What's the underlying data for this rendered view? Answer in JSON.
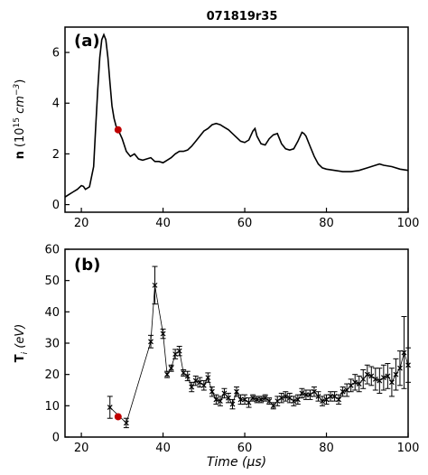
{
  "colors": {
    "line": "#000000",
    "marker": "#c00000"
  },
  "chart_data": [
    {
      "type": "line",
      "title": "071819r35",
      "panel_label": "(a)",
      "ylabel_main": "n",
      "ylabel_unit": "(10",
      "ylabel_exp": "15",
      "ylabel_tail": " cm",
      "ylabel_exp2": "−3",
      "ylabel_close": ")",
      "xlim": [
        16,
        100
      ],
      "ylim": [
        -0.3,
        7.0
      ],
      "xticks": [
        20,
        40,
        60,
        80,
        100
      ],
      "xtick_labels": [
        "20",
        "40",
        "60",
        "80",
        "100"
      ],
      "yticks": [
        0,
        2,
        4,
        6
      ],
      "ytick_labels": [
        "0",
        "2",
        "4",
        "6"
      ],
      "series": [
        {
          "x": [
            16,
            17,
            18,
            19,
            20,
            20.5,
            21,
            22,
            23,
            23.5,
            24,
            24.5,
            25,
            25.5,
            26,
            26.5,
            27,
            27.5,
            28,
            28.5,
            29,
            30,
            31,
            32,
            33,
            34,
            35,
            36,
            37,
            38,
            39,
            40,
            41,
            42,
            43,
            44,
            45,
            46,
            47,
            48,
            49,
            50,
            51,
            52,
            53,
            54,
            55,
            56,
            57,
            58,
            59,
            60,
            61,
            62,
            62.5,
            63,
            64,
            65,
            66,
            67,
            68,
            69,
            70,
            71,
            72,
            73,
            74,
            74.5,
            75,
            76,
            77,
            78,
            79,
            80,
            82,
            84,
            86,
            88,
            90,
            92,
            93,
            94,
            96,
            98,
            100
          ],
          "y": [
            0.3,
            0.4,
            0.5,
            0.6,
            0.75,
            0.72,
            0.6,
            0.7,
            1.5,
            3.0,
            4.5,
            5.8,
            6.5,
            6.7,
            6.5,
            5.8,
            4.8,
            3.9,
            3.4,
            3.1,
            2.95,
            2.6,
            2.1,
            1.9,
            2.0,
            1.8,
            1.75,
            1.8,
            1.85,
            1.7,
            1.7,
            1.65,
            1.75,
            1.85,
            2.0,
            2.1,
            2.1,
            2.15,
            2.3,
            2.5,
            2.7,
            2.9,
            3.0,
            3.15,
            3.2,
            3.15,
            3.05,
            2.95,
            2.8,
            2.65,
            2.5,
            2.45,
            2.55,
            2.9,
            3.0,
            2.7,
            2.4,
            2.35,
            2.6,
            2.75,
            2.8,
            2.4,
            2.2,
            2.15,
            2.2,
            2.5,
            2.85,
            2.8,
            2.7,
            2.3,
            1.9,
            1.6,
            1.45,
            1.4,
            1.35,
            1.3,
            1.3,
            1.35,
            1.45,
            1.55,
            1.6,
            1.55,
            1.5,
            1.4,
            1.35
          ]
        }
      ],
      "marker": {
        "x": 29,
        "y": 2.95
      }
    },
    {
      "type": "scatter",
      "panel_label": "(b)",
      "ylabel_main": "T",
      "ylabel_sub": "i",
      "ylabel_unit": " (eV)",
      "xlabel_main": "Time",
      "xlabel_unit": " (μs)",
      "xlim": [
        16,
        100
      ],
      "ylim": [
        0,
        60
      ],
      "xticks": [
        20,
        40,
        60,
        80,
        100
      ],
      "xtick_labels": [
        "20",
        "40",
        "60",
        "80",
        "100"
      ],
      "yticks": [
        0,
        10,
        20,
        30,
        40,
        50,
        60
      ],
      "ytick_labels": [
        "0",
        "10",
        "20",
        "30",
        "40",
        "50",
        "60"
      ],
      "series": [
        {
          "x": [
            27,
            31,
            37,
            38,
            40,
            41,
            42,
            43,
            44,
            45,
            46,
            47,
            48,
            49,
            50,
            51,
            52,
            53,
            54,
            55,
            56,
            57,
            58,
            59,
            60,
            61,
            62,
            63,
            64,
            65,
            66,
            67,
            68,
            69,
            70,
            71,
            72,
            73,
            74,
            75,
            76,
            77,
            78,
            79,
            80,
            81,
            82,
            83,
            84,
            85,
            86,
            87,
            88,
            89,
            90,
            91,
            92,
            93,
            94,
            95,
            96,
            97,
            98,
            99,
            100
          ],
          "y": [
            9.5,
            4.5,
            30.5,
            48.5,
            33,
            20,
            22,
            26.5,
            27.5,
            20.5,
            19.5,
            16,
            18,
            17.5,
            16.5,
            19,
            14.5,
            12,
            11.5,
            14,
            12.5,
            10.5,
            14.5,
            12,
            12,
            11,
            12.5,
            12,
            12,
            12.5,
            11.5,
            10,
            11.5,
            12.5,
            13,
            12.5,
            11.5,
            12,
            14,
            13.5,
            13.5,
            14.5,
            13,
            11.5,
            12,
            13,
            13,
            12,
            14.5,
            15,
            16.5,
            17.5,
            17,
            18.5,
            20,
            19.5,
            18.5,
            18,
            19,
            19.5,
            17.5,
            20,
            22,
            27,
            23
          ],
          "yerr": [
            3.5,
            1.5,
            2,
            6,
            1.5,
            1,
            1,
            1.5,
            1.5,
            1,
            1.5,
            1.5,
            1.5,
            1.5,
            1.5,
            1.5,
            1.5,
            1.5,
            1.5,
            1.5,
            1.5,
            1.5,
            1.5,
            1.5,
            1.5,
            1.5,
            1,
            1,
            1,
            1,
            1,
            1,
            1.5,
            1.5,
            1.5,
            1.5,
            1.5,
            1.5,
            1.5,
            1.5,
            1.5,
            1.5,
            1.5,
            1.5,
            1.5,
            1.5,
            1.5,
            1.5,
            1.5,
            2,
            2,
            2.5,
            2.5,
            3,
            3,
            3,
            3.5,
            4,
            4,
            4,
            4.5,
            5,
            5.5,
            11.5,
            5.5
          ]
        }
      ],
      "marker": {
        "x": 29,
        "y": 6.5
      }
    }
  ]
}
